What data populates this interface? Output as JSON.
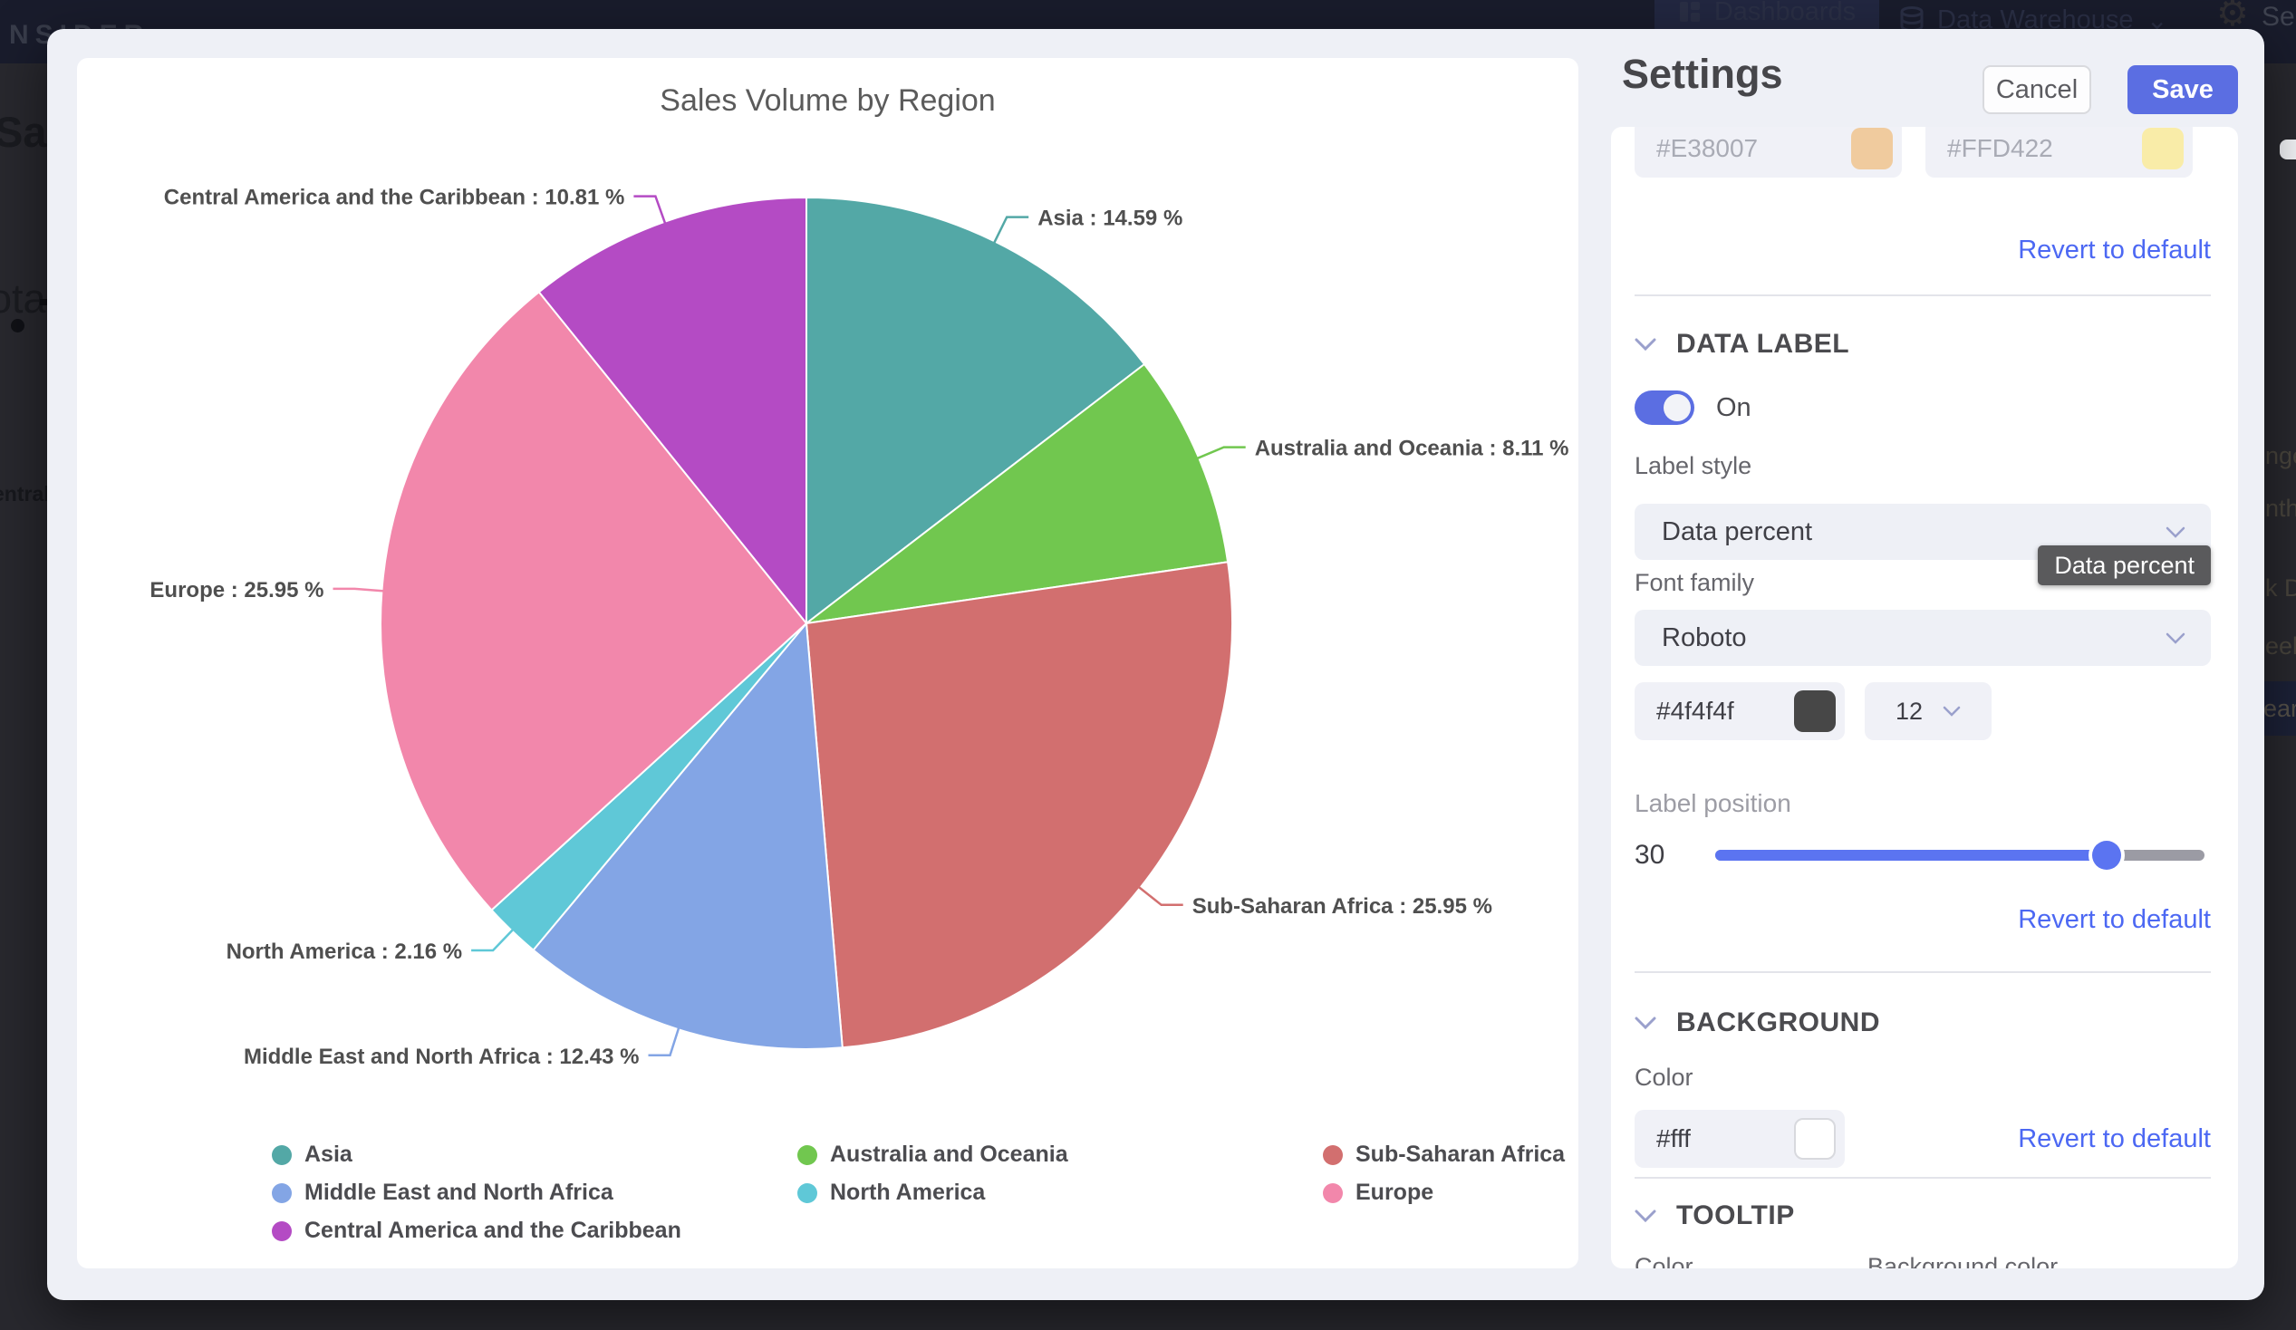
{
  "page_background": {
    "topbar": {
      "brand_fragment": "NSIDER",
      "dashboards_label": "Dashboards",
      "data_warehouse_label": "Data Warehouse",
      "dw_chevron": "⌄",
      "settings_fragment": "Se"
    },
    "left_fragments": {
      "sal": "Sal",
      "ota": "ota",
      "entral": "entral"
    },
    "right_fragments": {
      "nge": "nge",
      "nth": "nth",
      "kd": "k D",
      "eek": "eek",
      "ear": "ear"
    }
  },
  "chart_data": {
    "type": "pie",
    "title": "Sales Volume by Region",
    "label_format": "{name} : {value} %",
    "legend_position": "bottom",
    "start_angle_deg": 0,
    "direction": "clockwise",
    "series": [
      {
        "name": "Asia",
        "value": 14.59,
        "color": "#53a8a6"
      },
      {
        "name": "Australia and Oceania",
        "value": 8.11,
        "color": "#71c74f"
      },
      {
        "name": "Sub-Saharan Africa",
        "value": 25.95,
        "color": "#d26f6f"
      },
      {
        "name": "Middle East and North Africa",
        "value": 12.43,
        "color": "#83a5e5"
      },
      {
        "name": "North America",
        "value": 2.16,
        "color": "#5fc8d7"
      },
      {
        "name": "Europe",
        "value": 25.95,
        "color": "#f287ab"
      },
      {
        "name": "Central America and the Caribbean",
        "value": 10.81,
        "color": "#b44bc4"
      }
    ],
    "data_label_color": "#4f4f4f"
  },
  "settings": {
    "title": "Settings",
    "cancel_label": "Cancel",
    "save_label": "Save",
    "accent": "#5b6ee2",
    "link_color": "#4c68f3",
    "revert_label": "Revert to default",
    "scrolled_color_inputs": [
      {
        "value": "#E38007",
        "swatch": "#f0cb9e"
      },
      {
        "value": "#FFD422",
        "swatch": "#f9eca8"
      }
    ],
    "data_label": {
      "heading": "DATA LABEL",
      "toggle_state": "On",
      "label_style_label": "Label style",
      "label_style_value": "Data percent",
      "tooltip_flyout": "Data percent",
      "font_family_label": "Font family",
      "font_family_value": "Roboto",
      "font_color_value": "#4f4f4f",
      "font_color_swatch": "#474747",
      "font_size_value": "12",
      "label_position_label": "Label position",
      "label_position_value": "30",
      "label_position_fill_pct": 80
    },
    "background": {
      "heading": "BACKGROUND",
      "color_label": "Color",
      "color_value": "#fff",
      "color_swatch": "#ffffff"
    },
    "tooltip_section": {
      "heading": "TOOLTIP",
      "color_label": "Color",
      "background_color_label": "Background color"
    }
  }
}
